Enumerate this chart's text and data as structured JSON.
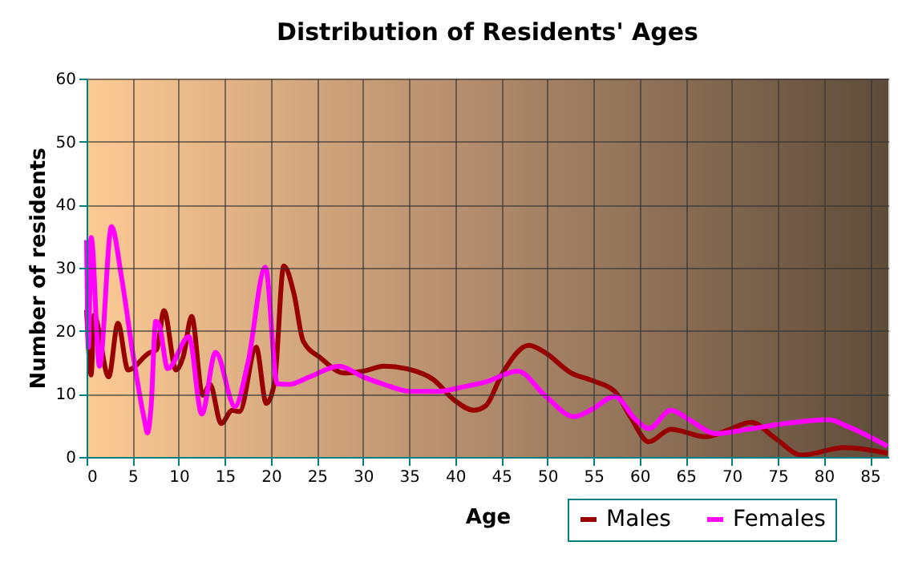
{
  "chart_data": {
    "type": "line",
    "title": "Distribution of Residents' Ages",
    "xlabel": "Age",
    "ylabel": "Number of residents",
    "xlim": [
      0,
      87
    ],
    "ylim": [
      0,
      60
    ],
    "xticks": [
      0,
      5,
      10,
      15,
      20,
      25,
      30,
      35,
      40,
      45,
      50,
      55,
      60,
      65,
      70,
      75,
      80,
      85
    ],
    "yticks": [
      0,
      10,
      20,
      30,
      40,
      50,
      60
    ],
    "grid": true,
    "legend": "bottom right",
    "line_style": "solid",
    "series": [
      {
        "name": "Males",
        "color": "#990000",
        "x": [
          0,
          0.5,
          0.8,
          2.4,
          3.4,
          4.5,
          6.8,
          7.6,
          8.4,
          9.7,
          10.5,
          11.4,
          12.6,
          13.4,
          14.6,
          15.8,
          16.6,
          18.4,
          19.5,
          20.4,
          21.4,
          22.5,
          23.5,
          25.4,
          28,
          30,
          32.3,
          34.7,
          37.6,
          40,
          42,
          43.3,
          45.1,
          48,
          49.7,
          52.6,
          54.9,
          57.3,
          59,
          61,
          63.4,
          67.2,
          69.5,
          72.1,
          74.7,
          77.6,
          82.2,
          86.9
        ],
        "values": [
          23.3,
          13,
          22.5,
          12.7,
          21.2,
          13.8,
          16.5,
          17,
          23.2,
          13.8,
          16,
          22.3,
          9.8,
          11.5,
          5.3,
          7.4,
          7.2,
          17.4,
          8.5,
          11.9,
          30.3,
          25.9,
          18.4,
          15.7,
          13.3,
          13.6,
          14.4,
          14,
          12.3,
          8.9,
          7.4,
          8.1,
          13.2,
          17.7,
          16.6,
          13.3,
          12.1,
          10.4,
          6.4,
          2.4,
          4.4,
          3.2,
          4.2,
          5.5,
          3,
          0.3,
          1.5,
          0.6
        ]
      },
      {
        "name": "Females",
        "color": "#ff00ff",
        "x": [
          0,
          0.2,
          0.5,
          1.4,
          2.7,
          3.8,
          5,
          6.3,
          6.6,
          7,
          7.5,
          7.9,
          8.8,
          11.1,
          12.5,
          14,
          16.1,
          17.5,
          19.4,
          20.7,
          21.9,
          24.2,
          27.4,
          30,
          32.3,
          35.2,
          38.2,
          40.5,
          43.3,
          46.8,
          49.7,
          52.9,
          54.9,
          57.3,
          59.6,
          61,
          63.4,
          65.4,
          68.3,
          71.8,
          75.8,
          80.5,
          82.8,
          86.9
        ],
        "values": [
          34.4,
          17.4,
          34.8,
          14.4,
          36.5,
          28.4,
          16.6,
          5.7,
          3.8,
          8,
          21.5,
          20.8,
          14,
          19.1,
          6.8,
          16.6,
          8,
          14.9,
          30.1,
          11.6,
          11.5,
          12.7,
          14.4,
          12.7,
          11.5,
          10.4,
          10.4,
          11,
          11.9,
          13.6,
          9.8,
          6.4,
          7.6,
          9.6,
          5.9,
          4.5,
          7.4,
          5.9,
          3.7,
          4.4,
          5.3,
          5.9,
          4.7,
          1.7
        ]
      }
    ]
  }
}
